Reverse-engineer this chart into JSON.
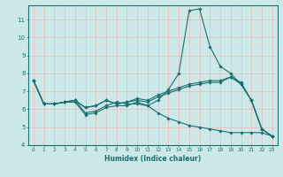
{
  "xlabel": "Humidex (Indice chaleur)",
  "ylabel": "",
  "bg_color": "#cce8e8",
  "grid_color": "#f0b8b8",
  "line_color": "#1a7070",
  "xlim": [
    -0.5,
    23.5
  ],
  "ylim": [
    4,
    11.8
  ],
  "yticks": [
    4,
    5,
    6,
    7,
    8,
    9,
    10,
    11
  ],
  "xticks": [
    0,
    1,
    2,
    3,
    4,
    5,
    6,
    7,
    8,
    9,
    10,
    11,
    12,
    13,
    14,
    15,
    16,
    17,
    18,
    19,
    20,
    21,
    22,
    23
  ],
  "series": [
    [
      7.6,
      6.3,
      6.3,
      6.4,
      6.4,
      5.7,
      5.8,
      6.1,
      6.2,
      6.2,
      6.4,
      6.2,
      6.5,
      7.1,
      8.0,
      11.5,
      11.6,
      9.5,
      8.4,
      8.0,
      7.4,
      6.5,
      4.9,
      4.5
    ],
    [
      7.6,
      6.3,
      6.3,
      6.4,
      6.5,
      6.1,
      6.2,
      6.5,
      6.3,
      6.4,
      6.6,
      6.5,
      6.8,
      7.0,
      7.2,
      7.4,
      7.5,
      7.6,
      7.6,
      7.8,
      7.5,
      6.5,
      4.9,
      4.5
    ],
    [
      7.6,
      6.3,
      6.3,
      6.4,
      6.5,
      6.1,
      6.2,
      6.5,
      6.3,
      6.4,
      6.5,
      6.4,
      6.7,
      6.9,
      7.1,
      7.3,
      7.4,
      7.5,
      7.5,
      7.8,
      7.4,
      6.5,
      4.9,
      4.5
    ],
    [
      7.6,
      6.3,
      6.3,
      6.4,
      6.5,
      5.8,
      5.9,
      6.2,
      6.4,
      6.3,
      6.3,
      6.2,
      5.8,
      5.5,
      5.3,
      5.1,
      5.0,
      4.9,
      4.8,
      4.7,
      4.7,
      4.7,
      4.7,
      4.5
    ]
  ]
}
